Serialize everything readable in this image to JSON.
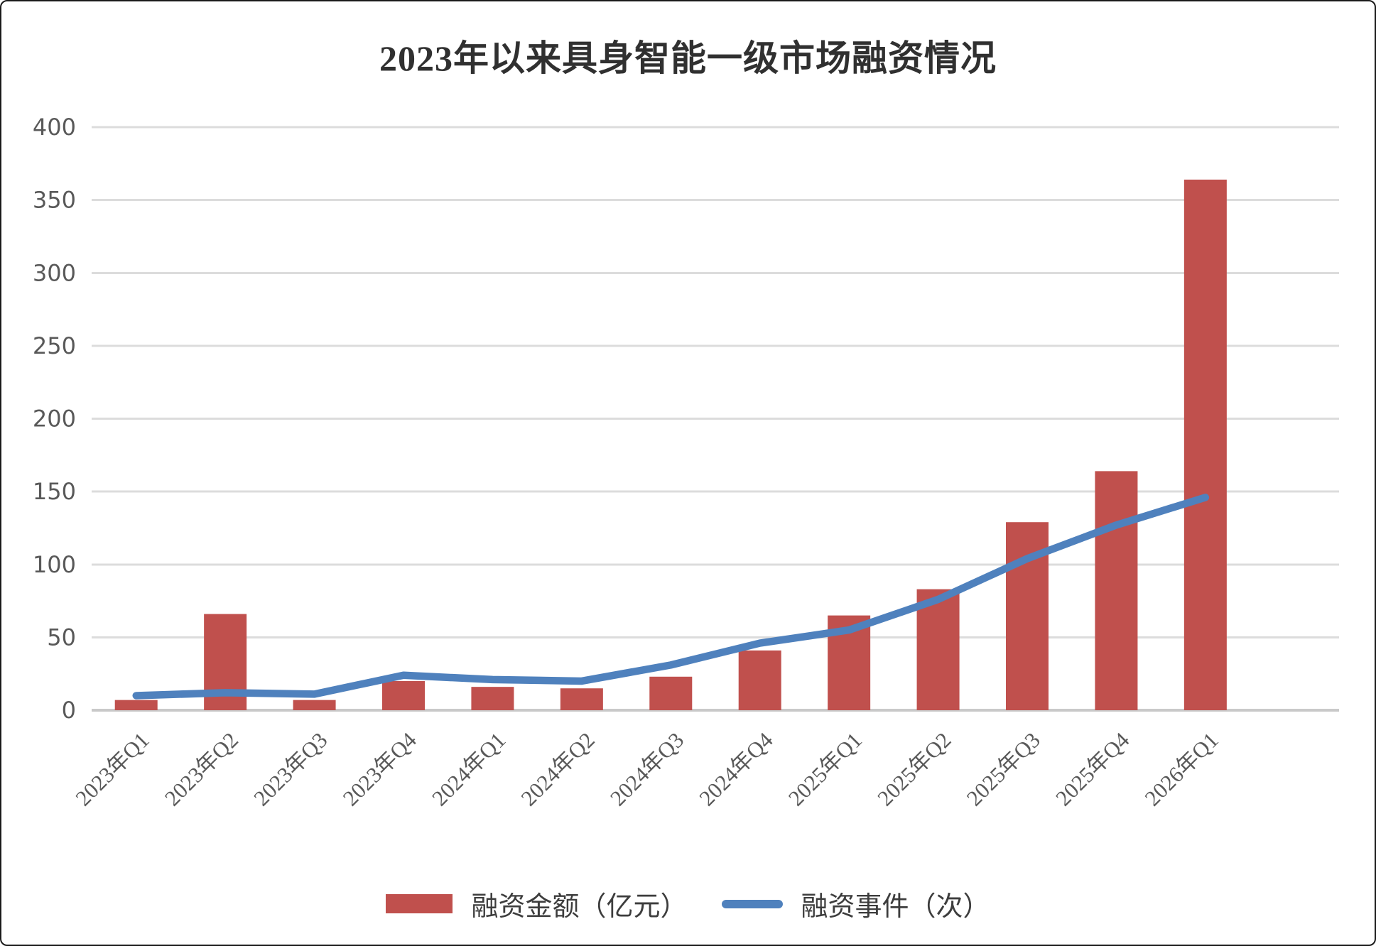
{
  "title": "2023年以来具身智能一级市场融资情况",
  "chart_data": {
    "type": "bar+line",
    "title": "2023年以来具身智能一级市场融资情况",
    "categories": [
      "2023年Q1",
      "2023年Q2",
      "2023年Q3",
      "2023年Q4",
      "2024年Q1",
      "2024年Q2",
      "2024年Q3",
      "2024年Q4",
      "2025年Q1",
      "2025年Q2",
      "2025年Q3",
      "2025年Q4",
      "2026年Q1"
    ],
    "series": [
      {
        "name": "融资金额（亿元）",
        "type": "bar",
        "color": "#C0504D",
        "values": [
          7,
          66,
          7,
          20,
          16,
          15,
          23,
          41,
          65,
          83,
          129,
          164,
          364
        ]
      },
      {
        "name": "融资事件（次）",
        "type": "line",
        "color": "#4F81BD",
        "values": [
          10,
          12,
          11,
          24,
          21,
          20,
          31,
          46,
          55,
          76,
          104,
          127,
          146
        ]
      }
    ],
    "xlabel": "",
    "ylabel": "",
    "ylim": [
      0,
      400
    ],
    "ytick_step": 50,
    "grid": true,
    "legend_position": "bottom",
    "colors": {
      "grid": "#DCDCDC",
      "baseline": "#C9C9C9",
      "axis_text": "#595959",
      "title_text": "#303030"
    }
  }
}
